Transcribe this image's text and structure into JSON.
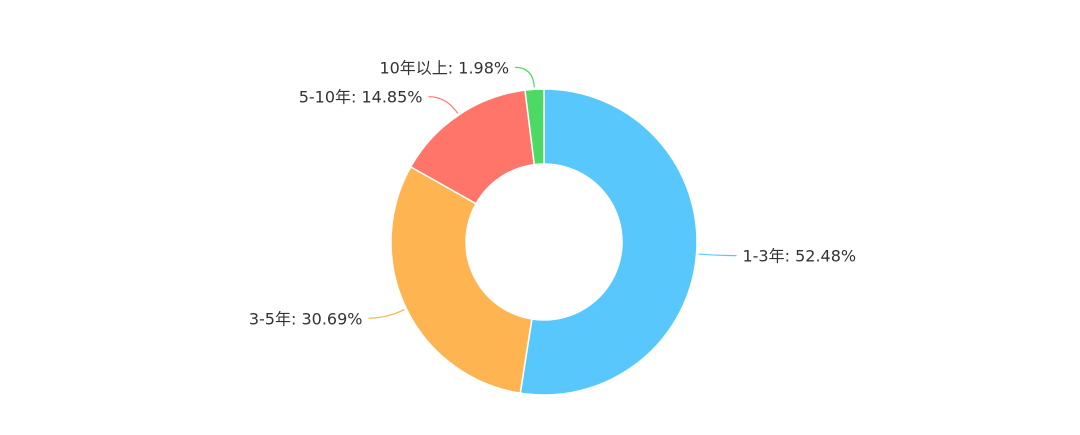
{
  "chart_data": {
    "type": "pie",
    "variant": "donut",
    "title": "",
    "categories": [
      "1-3年",
      "3-5年",
      "5-10年",
      "10年以上"
    ],
    "values": [
      52.48,
      30.69,
      14.85,
      1.98
    ],
    "unit": "%",
    "colors": [
      "#58c7fb",
      "#feb551",
      "#ff756a",
      "#4cd964"
    ],
    "labels": [
      "1-3年: 52.48%",
      "3-5年: 30.69%",
      "5-10年: 14.85%",
      "10年以上: 1.98%"
    ],
    "legend": "none"
  }
}
